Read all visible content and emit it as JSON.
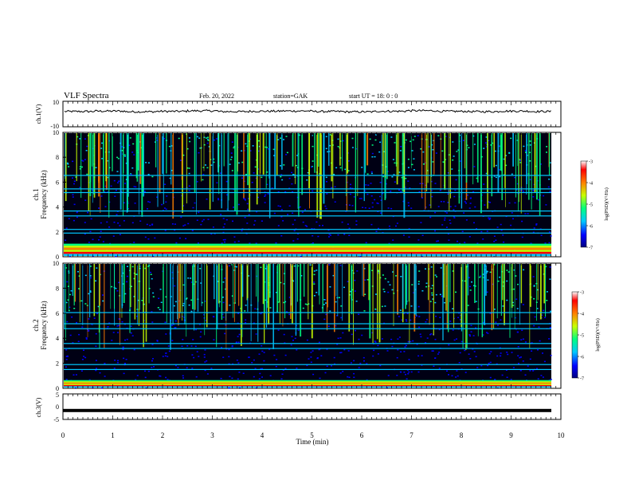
{
  "header": {
    "title": "VLF Spectra",
    "date": "Feb. 20, 2022",
    "station": "station=GAK",
    "start": "start  UT =   18: 0  : 0"
  },
  "chart_data": [
    {
      "type": "line",
      "panel": "ch1-waveform",
      "ylabel": "ch.1(V)",
      "ylim": [
        -10,
        10
      ],
      "y_ticks": [
        "10",
        "-10"
      ],
      "x_range_min": [
        0,
        9.82
      ],
      "approx_level": 2,
      "series": [
        {
          "values": [
            2.0,
            2.3,
            1.8,
            2.1,
            2.5,
            1.9,
            2.2,
            2.4,
            2.0,
            1.7,
            2.2,
            2.6,
            2.1,
            1.9,
            2.3,
            2.0
          ]
        }
      ]
    },
    {
      "type": "heatmap",
      "panel": "ch1-spectrogram",
      "ylabel_line1": "ch.1",
      "ylabel_line2": "Frequency  (kHz)",
      "ylim": [
        0,
        10
      ],
      "y_ticks": [
        "0",
        "2",
        "4",
        "6",
        "8",
        "10"
      ],
      "x_range_min": [
        0,
        9.82
      ],
      "colorbar": {
        "label": "log(PSD)(V²/Hz)",
        "range": [
          -7,
          -3
        ],
        "ticks": [
          "-3",
          "-4",
          "-5",
          "-6",
          "-7"
        ],
        "colors": [
          "#000080",
          "#0000ff",
          "#00c8ff",
          "#00ff80",
          "#c8ff00",
          "#ff8000",
          "#ff0000",
          "#ffffff"
        ]
      },
      "bands_khz": [
        0.3,
        0.6,
        0.9,
        1.9,
        2.2,
        3.3,
        3.7,
        5.2,
        5.5,
        6.6
      ],
      "features": [
        "broadband bursts 6-10 kHz",
        "strong emission below 1 kHz"
      ]
    },
    {
      "type": "heatmap",
      "panel": "ch2-spectrogram",
      "ylabel_line1": "ch.2",
      "ylabel_line2": "Frequency  (kHz)",
      "ylim": [
        0,
        10
      ],
      "y_ticks": [
        "0",
        "2",
        "4",
        "6",
        "8",
        "10"
      ],
      "x_range_min": [
        0,
        9.82
      ],
      "colorbar": {
        "label": "log(PSD)(V²/Hz)",
        "range": [
          -7,
          -3
        ],
        "ticks": [
          "-3",
          "-4",
          "-5",
          "-6",
          "-7"
        ],
        "colors": [
          "#000080",
          "#0000ff",
          "#00c8ff",
          "#00ff80",
          "#c8ff00",
          "#ff8000",
          "#ff0000",
          "#ffffff"
        ]
      },
      "bands_khz": [
        0.3,
        0.5,
        1.5,
        1.9,
        3.2,
        3.6,
        4.8,
        5.2,
        6.1
      ],
      "features": [
        "broadband bursts 5-10 kHz",
        "strong emission below 0.6 kHz"
      ]
    },
    {
      "type": "line",
      "panel": "ch3-waveform",
      "ylabel": "ch.3(V)",
      "ylim": [
        -5,
        5
      ],
      "y_ticks": [
        "5",
        "0",
        "-5"
      ],
      "x_range_min": [
        0,
        9.82
      ],
      "approx_level": -1.5,
      "series": [
        {
          "values": [
            -1.5,
            -1.5,
            -1.5,
            -1.5,
            -1.5,
            -1.5,
            -1.5,
            -1.5
          ]
        }
      ]
    }
  ],
  "xaxis": {
    "label": "Time  (min)",
    "range": [
      0,
      10
    ],
    "ticks": [
      "0",
      "1",
      "2",
      "3",
      "4",
      "5",
      "6",
      "7",
      "8",
      "9",
      "10"
    ]
  }
}
